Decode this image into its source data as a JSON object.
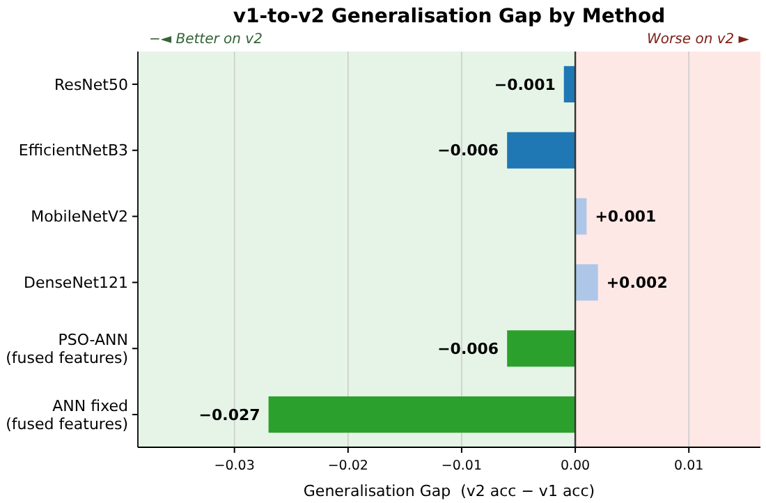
{
  "chart_data": {
    "type": "bar",
    "orientation": "horizontal",
    "title": "v1-to-v2 Generalisation Gap by Method",
    "xlabel": "Generalisation Gap  (v2 acc − v1 acc)",
    "categories": [
      "ResNet50",
      "EfficientNetB3",
      "MobileNetV2",
      "DenseNet121",
      "PSO-ANN\n(fused features)",
      "ANN fixed\n(fused features)"
    ],
    "values": [
      -0.001,
      -0.006,
      0.001,
      0.002,
      -0.006,
      -0.027
    ],
    "colors": [
      "#1f77b4",
      "#1f77b4",
      "#aec7e8",
      "#aec7e8",
      "#2ca02c",
      "#2ca02c"
    ],
    "value_labels": [
      "−0.001",
      "−0.006",
      "+0.001",
      "+0.002",
      "−0.006",
      "−0.027"
    ],
    "xlim": [
      -0.0385,
      0.0163
    ],
    "xticks": [
      {
        "value": -0.03,
        "label": "−0.03"
      },
      {
        "value": -0.02,
        "label": "−0.02"
      },
      {
        "value": -0.01,
        "label": "−0.01"
      },
      {
        "value": 0,
        "label": "0.00"
      },
      {
        "value": 0.01,
        "label": "0.01"
      }
    ],
    "grid": "x",
    "ref_lines": [
      {
        "axis": "x",
        "value": 0,
        "color": "#333333"
      }
    ],
    "bands": [
      {
        "axis": "x",
        "from": -0.0385,
        "to": 0,
        "label": "−◄ Better on v2",
        "color": "#e5f4e6"
      },
      {
        "axis": "x",
        "from": 0,
        "to": 0.0163,
        "label": "Worse on v2 ►",
        "color": "#fde8e6"
      }
    ]
  }
}
